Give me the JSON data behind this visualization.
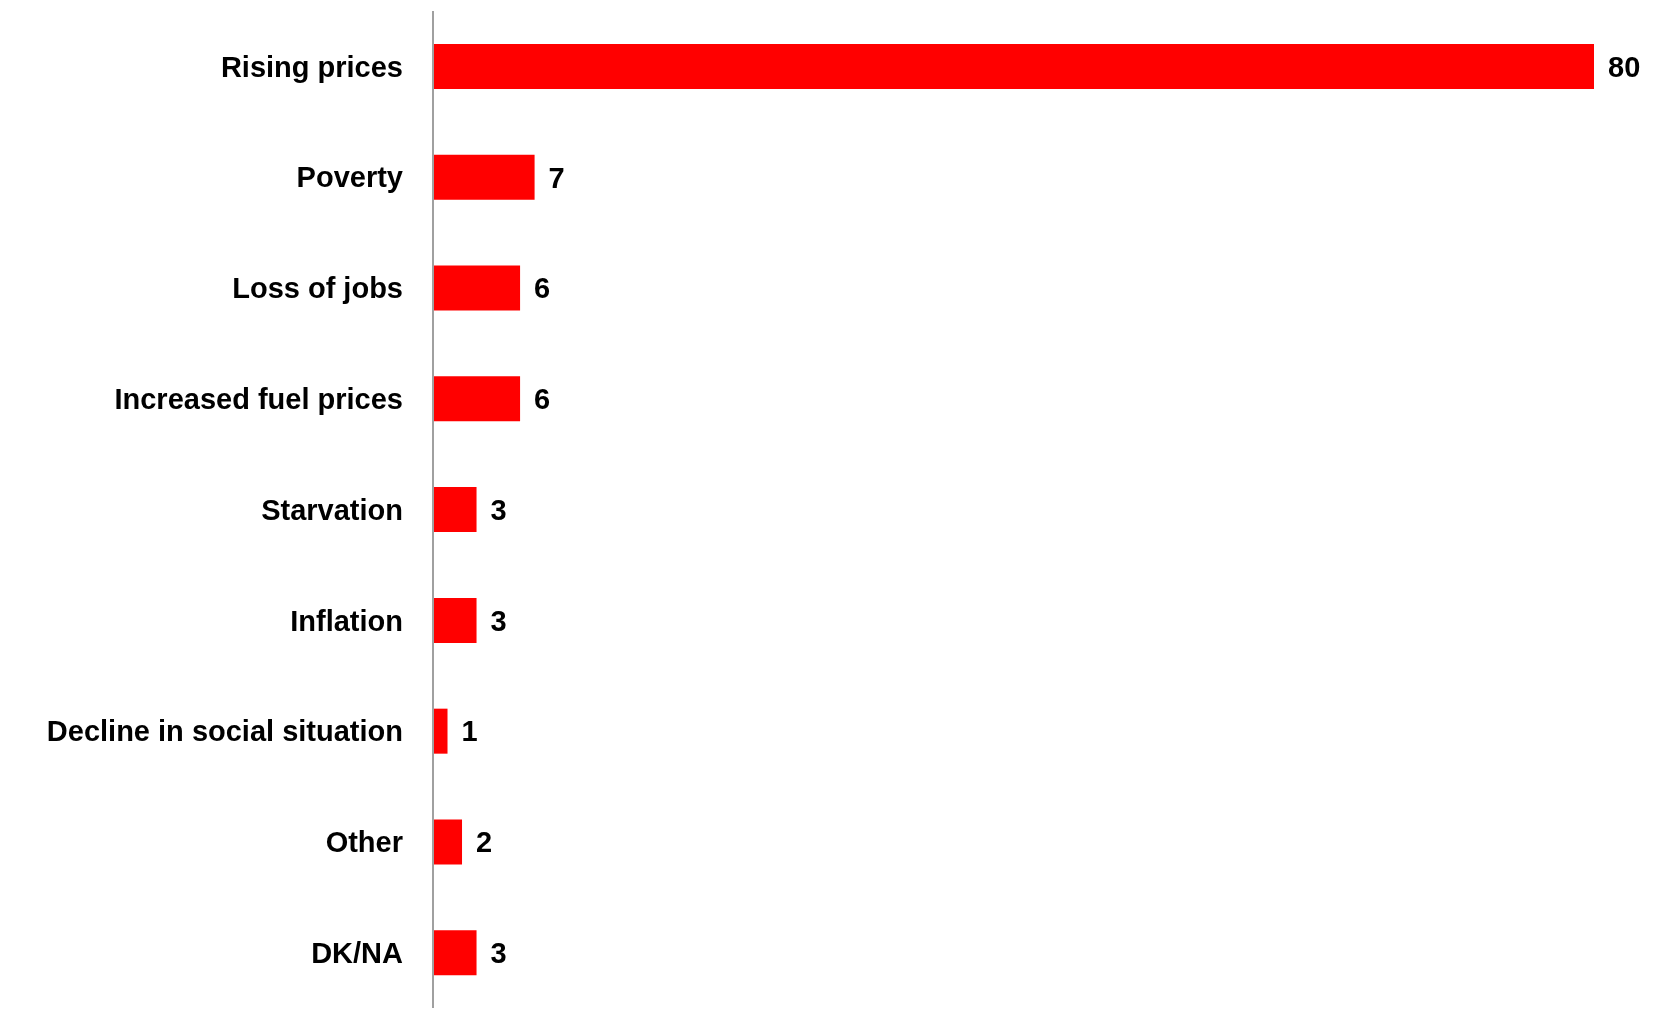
{
  "chart_data": {
    "type": "bar",
    "orientation": "horizontal",
    "categories": [
      "Rising prices",
      "Poverty",
      "Loss of jobs",
      "Increased fuel prices",
      "Starvation",
      "Inflation",
      "Decline in social situation",
      "Other",
      "DK/NA"
    ],
    "values": [
      80,
      7,
      6,
      6,
      3,
      3,
      1,
      2,
      3
    ],
    "color": "#ff0000",
    "data_labels": true
  }
}
